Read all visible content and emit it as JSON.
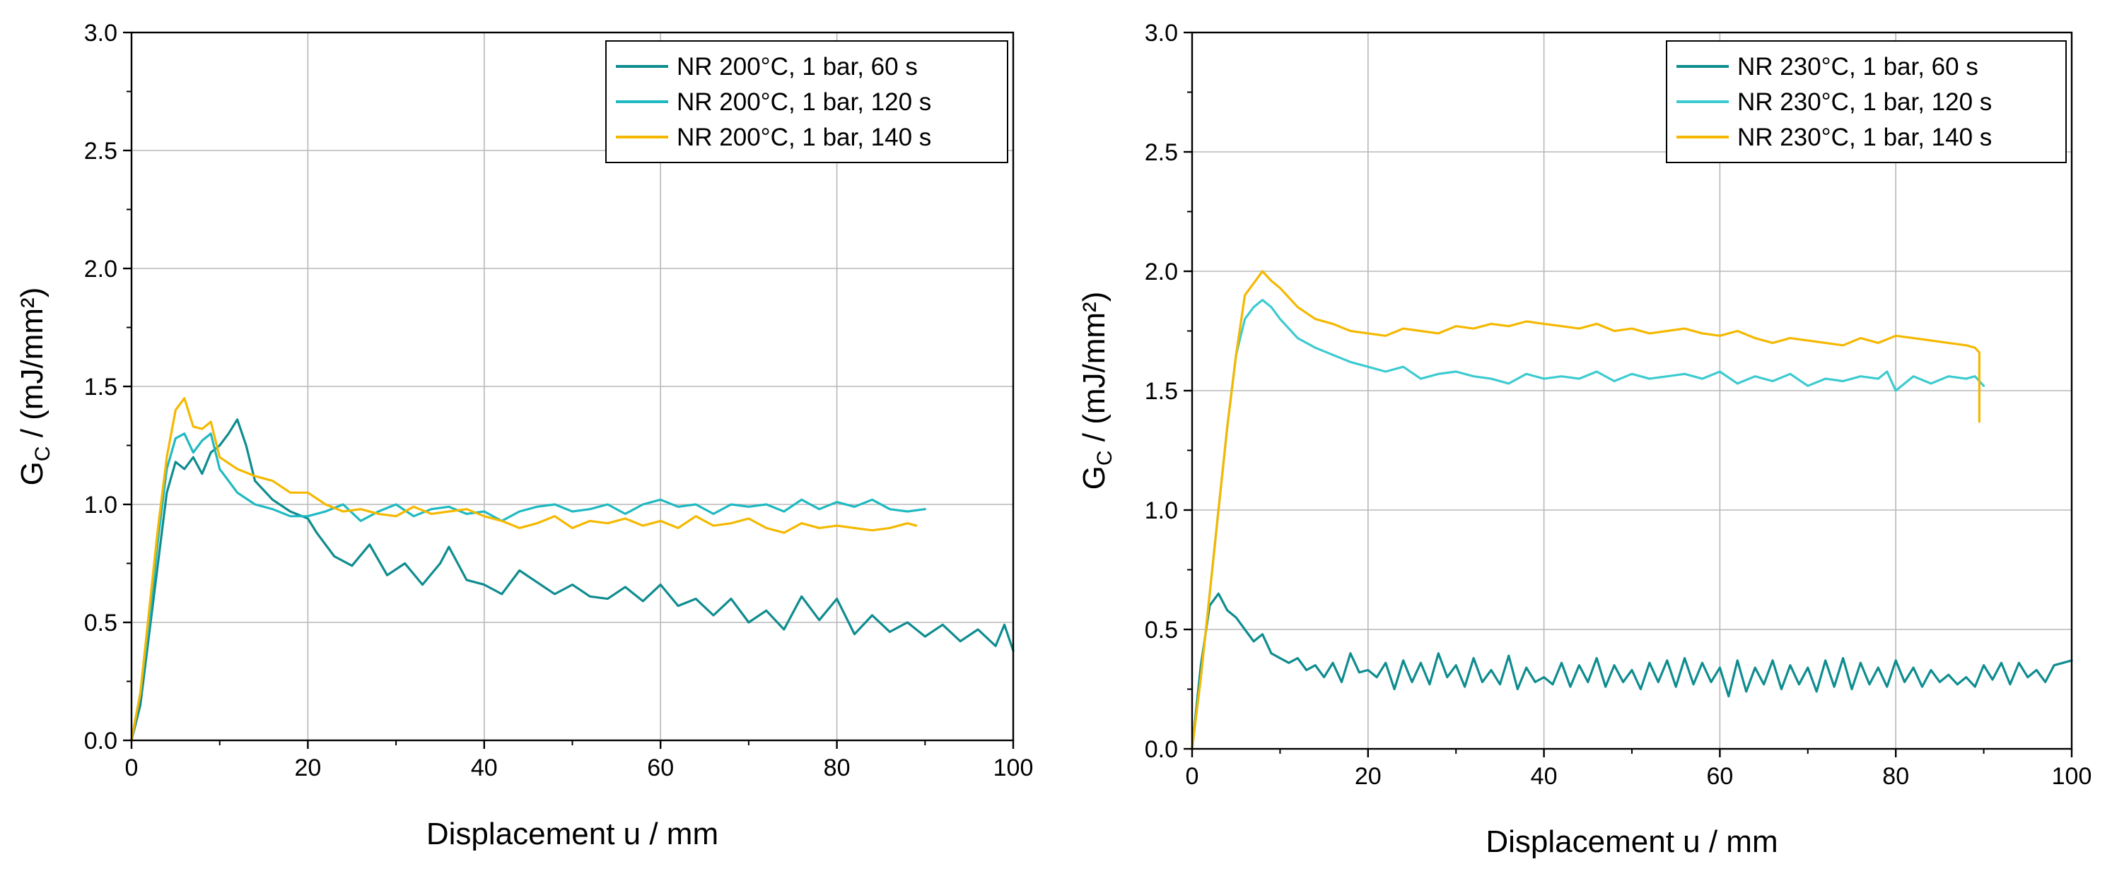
{
  "chart_data": [
    {
      "type": "line",
      "xlabel": "Displacement u / mm",
      "ylabel_main": "G",
      "ylabel_sub": "C",
      "ylabel_rest": " / (mJ/mm²)",
      "xlim": [
        0,
        100
      ],
      "ylim": [
        0,
        3.0
      ],
      "x_ticks": [
        0,
        20,
        40,
        60,
        80,
        100
      ],
      "y_ticks": [
        0.0,
        0.5,
        1.0,
        1.5,
        2.0,
        2.5,
        3.0
      ],
      "x_tick_labels": [
        "0",
        "20",
        "40",
        "60",
        "80",
        "100"
      ],
      "y_tick_labels": [
        "0.0",
        "0.5",
        "1.0",
        "1.5",
        "2.0",
        "2.5",
        "3.0"
      ],
      "grid": true,
      "legend_position": "top-right",
      "series": [
        {
          "name": "NR 200°C, 1 bar, 60 s",
          "color": "#0e8c8f",
          "x": [
            0,
            1,
            2,
            3,
            4,
            5,
            6,
            7,
            8,
            9,
            10,
            11,
            12,
            13,
            14,
            16,
            18,
            20,
            21,
            23,
            25,
            27,
            29,
            31,
            33,
            35,
            36,
            38,
            40,
            42,
            44,
            46,
            48,
            50,
            52,
            54,
            56,
            58,
            60,
            62,
            64,
            66,
            68,
            70,
            72,
            74,
            76,
            78,
            80,
            82,
            84,
            86,
            88,
            90,
            92,
            94,
            96,
            98,
            99,
            100
          ],
          "values": [
            0.0,
            0.15,
            0.45,
            0.75,
            1.05,
            1.18,
            1.15,
            1.2,
            1.13,
            1.22,
            1.25,
            1.3,
            1.36,
            1.25,
            1.1,
            1.02,
            0.97,
            0.94,
            0.88,
            0.78,
            0.74,
            0.83,
            0.7,
            0.75,
            0.66,
            0.75,
            0.82,
            0.68,
            0.66,
            0.62,
            0.72,
            0.67,
            0.62,
            0.66,
            0.61,
            0.6,
            0.65,
            0.59,
            0.66,
            0.57,
            0.6,
            0.53,
            0.6,
            0.5,
            0.55,
            0.47,
            0.61,
            0.51,
            0.6,
            0.45,
            0.53,
            0.46,
            0.5,
            0.44,
            0.49,
            0.42,
            0.47,
            0.4,
            0.49,
            0.38
          ]
        },
        {
          "name": "NR 200°C, 1 bar, 120 s",
          "color": "#1fb9c1",
          "x": [
            0,
            1,
            2,
            3,
            4,
            5,
            6,
            7,
            8,
            9,
            10,
            11,
            12,
            14,
            16,
            18,
            20,
            22,
            24,
            26,
            28,
            30,
            32,
            34,
            36,
            38,
            40,
            42,
            44,
            46,
            48,
            50,
            52,
            54,
            56,
            58,
            60,
            62,
            64,
            66,
            68,
            70,
            72,
            74,
            76,
            78,
            80,
            82,
            84,
            86,
            88,
            90
          ],
          "values": [
            0.0,
            0.2,
            0.5,
            0.85,
            1.15,
            1.28,
            1.3,
            1.22,
            1.27,
            1.3,
            1.15,
            1.1,
            1.05,
            1.0,
            0.98,
            0.95,
            0.95,
            0.97,
            1.0,
            0.93,
            0.97,
            1.0,
            0.95,
            0.98,
            0.99,
            0.96,
            0.97,
            0.93,
            0.97,
            0.99,
            1.0,
            0.97,
            0.98,
            1.0,
            0.96,
            1.0,
            1.02,
            0.99,
            1.0,
            0.96,
            1.0,
            0.99,
            1.0,
            0.97,
            1.02,
            0.98,
            1.01,
            0.99,
            1.02,
            0.98,
            0.97,
            0.98
          ]
        },
        {
          "name": "NR 200°C, 1 bar, 140 s",
          "color": "#f5b800",
          "x": [
            0,
            1,
            2,
            3,
            4,
            5,
            6,
            7,
            8,
            9,
            10,
            12,
            14,
            16,
            18,
            20,
            22,
            24,
            26,
            28,
            30,
            32,
            34,
            36,
            38,
            40,
            42,
            44,
            46,
            48,
            50,
            52,
            54,
            56,
            58,
            60,
            62,
            64,
            66,
            68,
            70,
            72,
            74,
            76,
            78,
            80,
            82,
            84,
            86,
            88,
            89
          ],
          "values": [
            0.0,
            0.2,
            0.55,
            0.9,
            1.2,
            1.4,
            1.45,
            1.33,
            1.32,
            1.35,
            1.2,
            1.15,
            1.12,
            1.1,
            1.05,
            1.05,
            1.0,
            0.97,
            0.98,
            0.96,
            0.95,
            0.99,
            0.96,
            0.97,
            0.98,
            0.95,
            0.93,
            0.9,
            0.92,
            0.95,
            0.9,
            0.93,
            0.92,
            0.94,
            0.91,
            0.93,
            0.9,
            0.95,
            0.91,
            0.92,
            0.94,
            0.9,
            0.88,
            0.92,
            0.9,
            0.91,
            0.9,
            0.89,
            0.9,
            0.92,
            0.91
          ]
        }
      ]
    },
    {
      "type": "line",
      "xlabel": "Displacement u / mm",
      "ylabel_main": "G",
      "ylabel_sub": "C",
      "ylabel_rest": " / (mJ/mm²)",
      "xlim": [
        0,
        100
      ],
      "ylim": [
        0,
        3.0
      ],
      "x_ticks": [
        0,
        20,
        40,
        60,
        80,
        100
      ],
      "y_ticks": [
        0.0,
        0.5,
        1.0,
        1.5,
        2.0,
        2.5,
        3.0
      ],
      "x_tick_labels": [
        "0",
        "20",
        "40",
        "60",
        "80",
        "100"
      ],
      "y_tick_labels": [
        "0.0",
        "0.5",
        "1.0",
        "1.5",
        "2.0",
        "2.5",
        "3.0"
      ],
      "grid": true,
      "legend_position": "top-right",
      "series": [
        {
          "name": "NR 230°C, 1 bar, 60 s",
          "color": "#0e8c8f",
          "x": [
            0,
            1,
            2,
            3,
            4,
            5,
            6,
            7,
            8,
            9,
            10,
            11,
            12,
            13,
            14,
            15,
            16,
            17,
            18,
            19,
            20,
            21,
            22,
            23,
            24,
            25,
            26,
            27,
            28,
            29,
            30,
            31,
            32,
            33,
            34,
            35,
            36,
            37,
            38,
            39,
            40,
            41,
            42,
            43,
            44,
            45,
            46,
            47,
            48,
            49,
            50,
            51,
            52,
            53,
            54,
            55,
            56,
            57,
            58,
            59,
            60,
            61,
            62,
            63,
            64,
            65,
            66,
            67,
            68,
            69,
            70,
            71,
            72,
            73,
            74,
            75,
            76,
            77,
            78,
            79,
            80,
            81,
            82,
            83,
            84,
            85,
            86,
            87,
            88,
            89,
            90,
            91,
            92,
            93,
            94,
            95,
            96,
            97,
            98,
            99,
            100
          ],
          "values": [
            0.0,
            0.35,
            0.6,
            0.65,
            0.58,
            0.55,
            0.5,
            0.45,
            0.48,
            0.4,
            0.38,
            0.36,
            0.38,
            0.33,
            0.35,
            0.3,
            0.36,
            0.28,
            0.4,
            0.32,
            0.33,
            0.3,
            0.36,
            0.25,
            0.37,
            0.28,
            0.36,
            0.27,
            0.4,
            0.3,
            0.35,
            0.26,
            0.38,
            0.28,
            0.33,
            0.27,
            0.39,
            0.25,
            0.34,
            0.28,
            0.3,
            0.27,
            0.36,
            0.26,
            0.35,
            0.28,
            0.38,
            0.26,
            0.35,
            0.28,
            0.33,
            0.25,
            0.36,
            0.28,
            0.37,
            0.26,
            0.38,
            0.27,
            0.36,
            0.28,
            0.34,
            0.22,
            0.37,
            0.24,
            0.34,
            0.27,
            0.37,
            0.25,
            0.35,
            0.27,
            0.34,
            0.24,
            0.37,
            0.26,
            0.38,
            0.25,
            0.36,
            0.27,
            0.34,
            0.26,
            0.37,
            0.28,
            0.34,
            0.26,
            0.33,
            0.28,
            0.31,
            0.27,
            0.3,
            0.26,
            0.35,
            0.29,
            0.36,
            0.27,
            0.36,
            0.3,
            0.33,
            0.28,
            0.35,
            0.36,
            0.37
          ]
        },
        {
          "name": "NR 230°C, 1 bar, 120 s",
          "color": "#3ccbd0",
          "x": [
            0,
            1,
            2,
            3,
            4,
            5,
            6,
            7,
            8,
            9,
            10,
            12,
            14,
            16,
            18,
            20,
            22,
            24,
            26,
            28,
            30,
            32,
            34,
            36,
            38,
            40,
            42,
            44,
            46,
            48,
            50,
            52,
            54,
            56,
            58,
            60,
            62,
            64,
            66,
            68,
            70,
            72,
            74,
            76,
            78,
            79,
            80,
            82,
            84,
            86,
            88,
            89,
            90
          ],
          "values": [
            0.0,
            0.3,
            0.65,
            1.0,
            1.35,
            1.65,
            1.8,
            1.85,
            1.88,
            1.85,
            1.8,
            1.72,
            1.68,
            1.65,
            1.62,
            1.6,
            1.58,
            1.6,
            1.55,
            1.57,
            1.58,
            1.56,
            1.55,
            1.53,
            1.57,
            1.55,
            1.56,
            1.55,
            1.58,
            1.54,
            1.57,
            1.55,
            1.56,
            1.57,
            1.55,
            1.58,
            1.53,
            1.56,
            1.54,
            1.57,
            1.52,
            1.55,
            1.54,
            1.56,
            1.55,
            1.58,
            1.5,
            1.56,
            1.53,
            1.56,
            1.55,
            1.56,
            1.52
          ]
        },
        {
          "name": "NR 230°C, 1 bar, 140 s",
          "color": "#f5b800",
          "x": [
            0,
            1,
            2,
            3,
            4,
            5,
            6,
            7,
            8,
            9,
            10,
            12,
            14,
            16,
            18,
            20,
            22,
            24,
            26,
            28,
            30,
            32,
            34,
            36,
            38,
            40,
            42,
            44,
            46,
            48,
            50,
            52,
            54,
            56,
            58,
            60,
            62,
            64,
            66,
            68,
            70,
            72,
            74,
            76,
            78,
            80,
            82,
            84,
            86,
            88,
            89,
            89.5,
            89.5
          ],
          "values": [
            0.0,
            0.3,
            0.65,
            1.0,
            1.35,
            1.65,
            1.9,
            1.95,
            2.0,
            1.96,
            1.93,
            1.85,
            1.8,
            1.78,
            1.75,
            1.74,
            1.73,
            1.76,
            1.75,
            1.74,
            1.77,
            1.76,
            1.78,
            1.77,
            1.79,
            1.78,
            1.77,
            1.76,
            1.78,
            1.75,
            1.76,
            1.74,
            1.75,
            1.76,
            1.74,
            1.73,
            1.75,
            1.72,
            1.7,
            1.72,
            1.71,
            1.7,
            1.69,
            1.72,
            1.7,
            1.73,
            1.72,
            1.71,
            1.7,
            1.69,
            1.68,
            1.66,
            1.37
          ]
        }
      ]
    }
  ]
}
